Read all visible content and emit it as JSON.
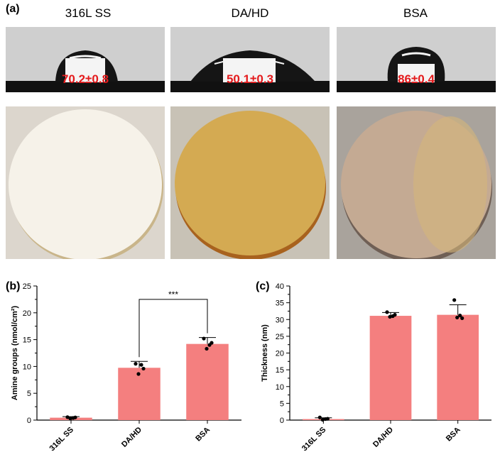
{
  "panel_a": {
    "label": "(a)",
    "columns": [
      {
        "title": "316L SS",
        "angle": "70.2±0.8",
        "disc_color": "#f6f2e9",
        "bg": "#dcd6cd"
      },
      {
        "title": "DA/HD",
        "angle": "50.1±0.3",
        "disc_color": "#d4aa52",
        "bg": "#c8c2b6"
      },
      {
        "title": "BSA",
        "angle": "86±0.4",
        "disc_color": "#c4aa93",
        "bg": "#a9a39c"
      }
    ]
  },
  "colors": {
    "bar": "#f47f7f",
    "angle_text": "#e41a1c"
  },
  "chart_data": [
    {
      "panel_label": "(b)",
      "type": "bar",
      "categories": [
        "316L SS",
        "DA/HD",
        "BSA"
      ],
      "values": [
        0.45,
        9.75,
        14.2
      ],
      "errors": [
        0.2,
        1.2,
        1.2
      ],
      "points": [
        [
          0.55,
          0.4,
          0.3,
          0.5
        ],
        [
          10.5,
          10.3,
          8.6,
          9.6
        ],
        [
          15.2,
          14.0,
          13.3,
          14.4
        ]
      ],
      "ylabel": "Amine groups (nmol/cm²)",
      "ylim": [
        0,
        25
      ],
      "yticks": [
        0,
        5,
        10,
        15,
        20,
        25
      ],
      "significance": {
        "from": 1,
        "to": 2,
        "label": "***"
      }
    },
    {
      "panel_label": "(c)",
      "type": "bar",
      "categories": [
        "316L SS",
        "DA/HD",
        "BSA"
      ],
      "values": [
        0.3,
        31.1,
        31.4
      ],
      "errors": [
        0.4,
        1.0,
        3.0
      ],
      "points": [
        [
          0.8,
          0.3,
          0.1,
          0.4
        ],
        [
          32.2,
          31.0,
          30.8,
          31.4
        ],
        [
          35.8,
          31.2,
          30.6,
          30.4
        ]
      ],
      "ylabel": "Thickness (nm)",
      "ylim": [
        0,
        40
      ],
      "yticks": [
        0,
        5,
        10,
        15,
        20,
        25,
        30,
        35,
        40
      ]
    }
  ]
}
